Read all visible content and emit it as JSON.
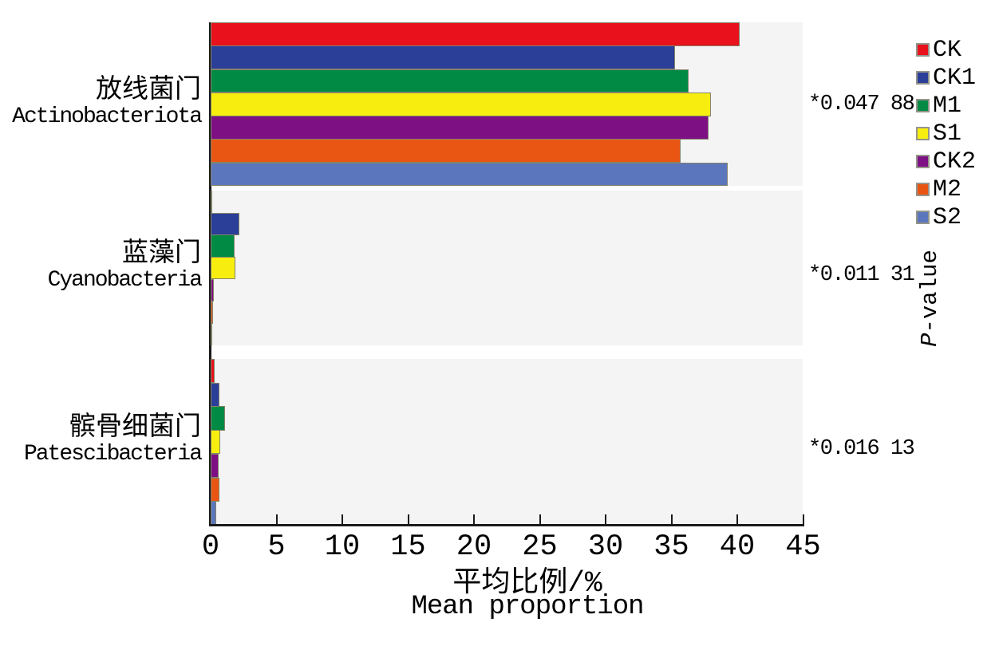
{
  "chart_data": {
    "type": "bar",
    "orientation": "horizontal",
    "xlabel_zh": "平均比例/%",
    "xlabel_en": "Mean proportion",
    "xlim": [
      0,
      45
    ],
    "x_ticks": [
      0,
      5,
      10,
      15,
      20,
      25,
      30,
      35,
      40,
      45
    ],
    "grid": false,
    "legend_position": "top-right",
    "right_axis_label": {
      "italic": "P",
      "rest": "-value"
    },
    "categories": [
      {
        "label_zh": "放线菌门",
        "label_en": "Actinobacteriota",
        "p_value": "*0.047 88"
      },
      {
        "label_zh": "蓝藻门",
        "label_en": "Cyanobacteria",
        "p_value": "*0.011 31"
      },
      {
        "label_zh": "髌骨细菌门",
        "label_en": "Patescibacteria",
        "p_value": "*0.016 13"
      }
    ],
    "series": [
      {
        "name": "CK",
        "color": "#e8111c",
        "values": [
          40.2,
          0.1,
          0.3
        ]
      },
      {
        "name": "CK1",
        "color": "#2b3e98",
        "values": [
          35.3,
          2.2,
          0.65
        ]
      },
      {
        "name": "M1",
        "color": "#008a44",
        "values": [
          36.3,
          1.8,
          1.1
        ]
      },
      {
        "name": "S1",
        "color": "#f7ee10",
        "values": [
          38.0,
          1.9,
          0.7
        ]
      },
      {
        "name": "CK2",
        "color": "#7d1083",
        "values": [
          37.8,
          0.25,
          0.6
        ]
      },
      {
        "name": "M2",
        "color": "#e95513",
        "values": [
          35.7,
          0.2,
          0.65
        ]
      },
      {
        "name": "S2",
        "color": "#5b76bc",
        "values": [
          39.3,
          0.15,
          0.45
        ]
      }
    ]
  }
}
